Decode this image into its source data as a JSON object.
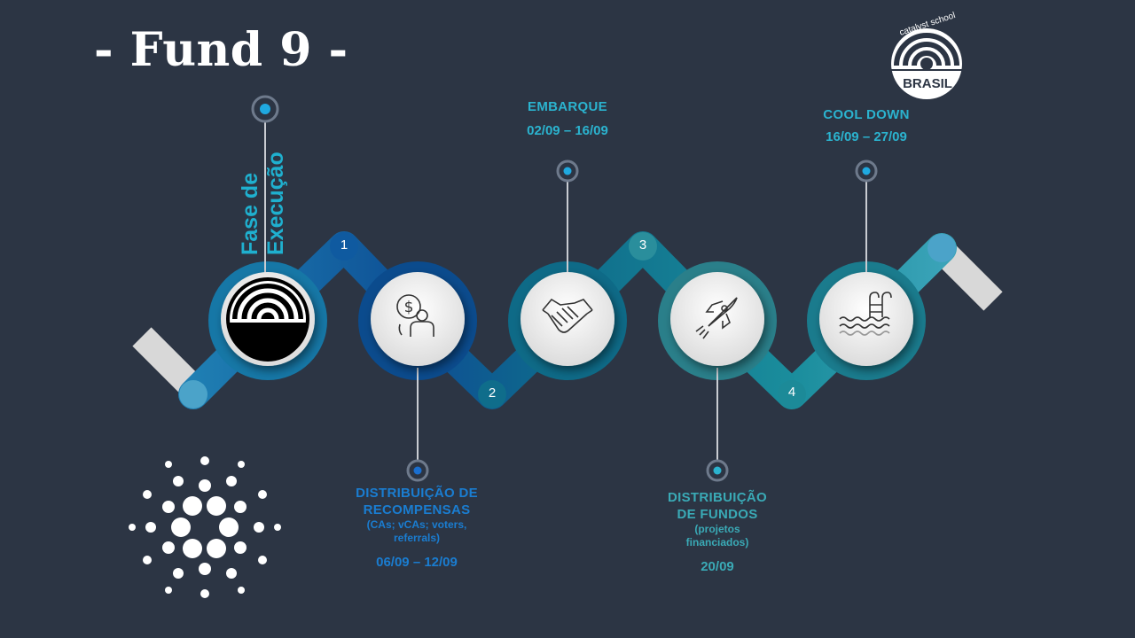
{
  "title": "- Fund 9 -",
  "phase_title": {
    "line1": "Fase de",
    "line2": "Execução"
  },
  "logo": {
    "top_text": "catalyst school",
    "bottom_text": "BRASIL"
  },
  "steps": [
    {
      "num": "1",
      "title_lines": [
        "EMBARQUE"
      ],
      "sub": "",
      "date": "02/09 – 16/09"
    },
    {
      "num": "2",
      "title_lines": [
        "DISTRIBUIÇÃO DE",
        "RECOMPENSAS"
      ],
      "sub": [
        "(CAs; vCAs; voters,",
        "referrals)"
      ],
      "date": "06/09 – 12/09"
    },
    {
      "num": "3",
      "title_lines": [
        "DISTRIBUIÇÃO",
        "DE FUNDOS"
      ],
      "sub": [
        "(projetos",
        "financiados)"
      ],
      "date": "20/09"
    },
    {
      "num": "4",
      "title_lines": [
        "COOL DOWN"
      ],
      "sub": "",
      "date": "16/09 – 27/09"
    }
  ],
  "icons": [
    "catalyst-logo-icon",
    "money-person-icon",
    "handshake-icon",
    "rocket-icon",
    "pool-ladder-icon",
    "cardano-logo-icon"
  ],
  "colors": {
    "background": "#2c3544",
    "teal": "#2bb3cf",
    "blue": "#1a7dd1",
    "white": "#ffffff"
  }
}
